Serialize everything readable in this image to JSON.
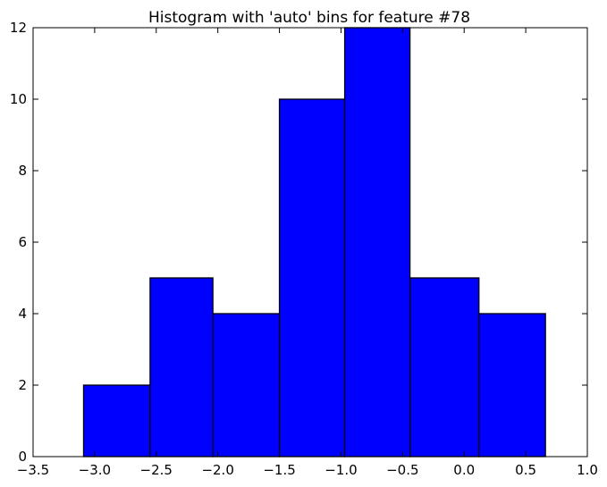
{
  "chart_data": {
    "type": "bar",
    "title": "Histogram with 'auto' bins for feature #78",
    "xlabel": "",
    "ylabel": "",
    "xlim": [
      -3.5,
      1.0
    ],
    "ylim": [
      0,
      12
    ],
    "xticks": [
      -3.5,
      -3.0,
      -2.5,
      -2.0,
      -1.5,
      -1.0,
      -0.5,
      0.0,
      0.5,
      1.0
    ],
    "xtick_labels": [
      "−3.5",
      "−3.0",
      "−2.5",
      "−2.0",
      "−1.5",
      "−1.0",
      "−0.5",
      "0.0",
      "0.5",
      "1.0"
    ],
    "yticks": [
      0,
      2,
      4,
      6,
      8,
      10,
      12
    ],
    "ytick_labels": [
      "0",
      "2",
      "4",
      "6",
      "8",
      "10",
      "12"
    ],
    "bin_edges": [
      -3.09,
      -2.55,
      -2.04,
      -1.5,
      -0.97,
      -0.44,
      0.12,
      0.66
    ],
    "counts": [
      2,
      5,
      4,
      10,
      12,
      5,
      4
    ],
    "grid": false,
    "bar_color": "#0000ff",
    "edge_color": "#000000"
  }
}
